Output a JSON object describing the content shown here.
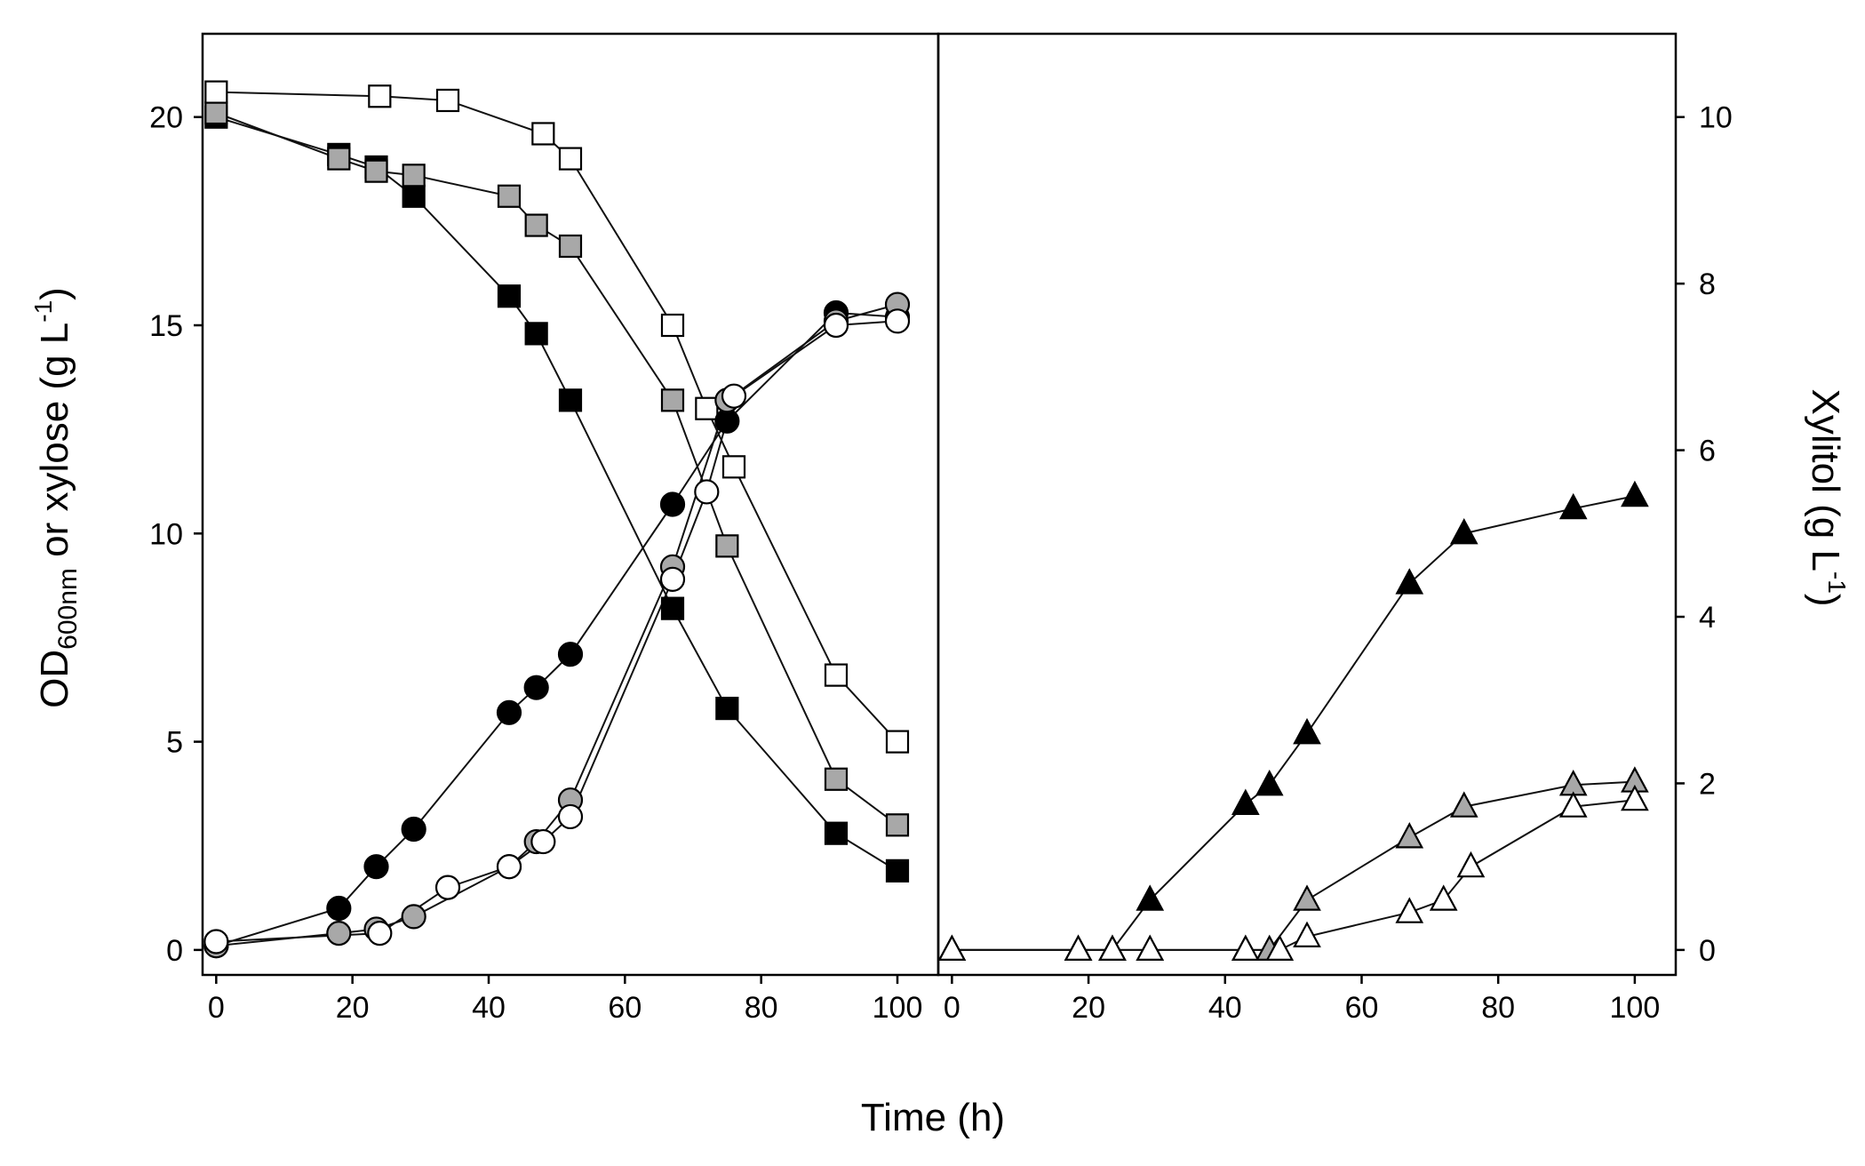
{
  "chart_data": [
    {
      "type": "line",
      "panel": "left",
      "xlabel": "Time (h)",
      "ylabel_parts": {
        "main": "OD",
        "sub": "600nm",
        "rest": " or xylose (g L",
        "sup": "-1",
        "close": ")"
      },
      "xlim": [
        -2,
        106
      ],
      "ylim": [
        -0.6,
        22
      ],
      "x_ticks": [
        0,
        20,
        40,
        60,
        80,
        100
      ],
      "y_ticks": [
        0,
        5,
        10,
        15,
        20
      ],
      "series": [
        {
          "name": "xylose-black",
          "marker": "square",
          "fill": "#000000",
          "x": [
            0,
            18,
            23.5,
            29,
            43,
            47,
            52,
            67,
            75,
            91,
            100
          ],
          "y": [
            20,
            19.1,
            18.8,
            18.1,
            15.7,
            14.8,
            13.2,
            8.2,
            5.8,
            2.8,
            1.9
          ]
        },
        {
          "name": "xylose-gray",
          "marker": "square",
          "fill": "#a8a8a8",
          "x": [
            0,
            18,
            23.5,
            29,
            43,
            47,
            52,
            67,
            75,
            91,
            100
          ],
          "y": [
            20.1,
            19.0,
            18.7,
            18.6,
            18.1,
            17.4,
            16.9,
            13.2,
            9.7,
            4.1,
            3.0
          ]
        },
        {
          "name": "xylose-white",
          "marker": "square",
          "fill": "#ffffff",
          "x": [
            0,
            24,
            34,
            48,
            52,
            67,
            72,
            76,
            91,
            100
          ],
          "y": [
            20.6,
            20.5,
            20.4,
            19.6,
            19.0,
            15.0,
            13.0,
            11.6,
            6.6,
            5.0
          ]
        },
        {
          "name": "od-black",
          "marker": "circle",
          "fill": "#000000",
          "x": [
            0,
            18,
            23.5,
            29,
            43,
            47,
            52,
            67,
            75,
            91,
            100
          ],
          "y": [
            0.1,
            1.0,
            2.0,
            2.9,
            5.7,
            6.3,
            7.1,
            10.7,
            12.7,
            15.3,
            15.2
          ]
        },
        {
          "name": "od-gray",
          "marker": "circle",
          "fill": "#a8a8a8",
          "x": [
            0,
            18,
            23.5,
            29,
            43,
            47,
            52,
            67,
            75,
            91,
            100
          ],
          "y": [
            0.1,
            0.4,
            0.5,
            0.8,
            2.0,
            2.6,
            3.6,
            9.2,
            13.2,
            15.1,
            15.5
          ]
        },
        {
          "name": "od-white",
          "marker": "circle",
          "fill": "#ffffff",
          "x": [
            0,
            24,
            34,
            43,
            48,
            52,
            67,
            72,
            76,
            91,
            100
          ],
          "y": [
            0.2,
            0.4,
            1.5,
            2.0,
            2.6,
            3.2,
            8.9,
            11.0,
            13.3,
            15.0,
            15.1
          ]
        }
      ]
    },
    {
      "type": "line",
      "panel": "right",
      "xlabel": "Time (h)",
      "ylabel_parts": {
        "main": "Xylitol (g L",
        "sup": "-1",
        "close": ")"
      },
      "xlim": [
        -2,
        106
      ],
      "ylim": [
        -0.3,
        11
      ],
      "x_ticks": [
        0,
        20,
        40,
        60,
        80,
        100
      ],
      "y_ticks": [
        0,
        2,
        4,
        6,
        8,
        10
      ],
      "series": [
        {
          "name": "xylitol-black",
          "marker": "triangle",
          "fill": "#000000",
          "x": [
            0,
            18.5,
            23.5,
            29,
            43,
            46.5,
            52,
            67,
            75,
            91,
            100
          ],
          "y": [
            0,
            0,
            0,
            0.6,
            1.75,
            1.98,
            2.6,
            4.4,
            5.0,
            5.3,
            5.45
          ]
        },
        {
          "name": "xylitol-gray",
          "marker": "triangle",
          "fill": "#a8a8a8",
          "x": [
            0,
            18.5,
            23.5,
            29,
            43,
            46.5,
            52,
            67,
            75,
            91,
            100
          ],
          "y": [
            0,
            0,
            0,
            0,
            0,
            0,
            0.6,
            1.35,
            1.72,
            1.98,
            2.02
          ]
        },
        {
          "name": "xylitol-white",
          "marker": "triangle",
          "fill": "#ffffff",
          "x": [
            0,
            18.5,
            23.5,
            29,
            43,
            48,
            52,
            67,
            72,
            76,
            91,
            100
          ],
          "y": [
            0,
            0,
            0,
            0,
            0,
            0,
            0.16,
            0.45,
            0.6,
            1.0,
            1.72,
            1.8
          ]
        }
      ]
    }
  ]
}
